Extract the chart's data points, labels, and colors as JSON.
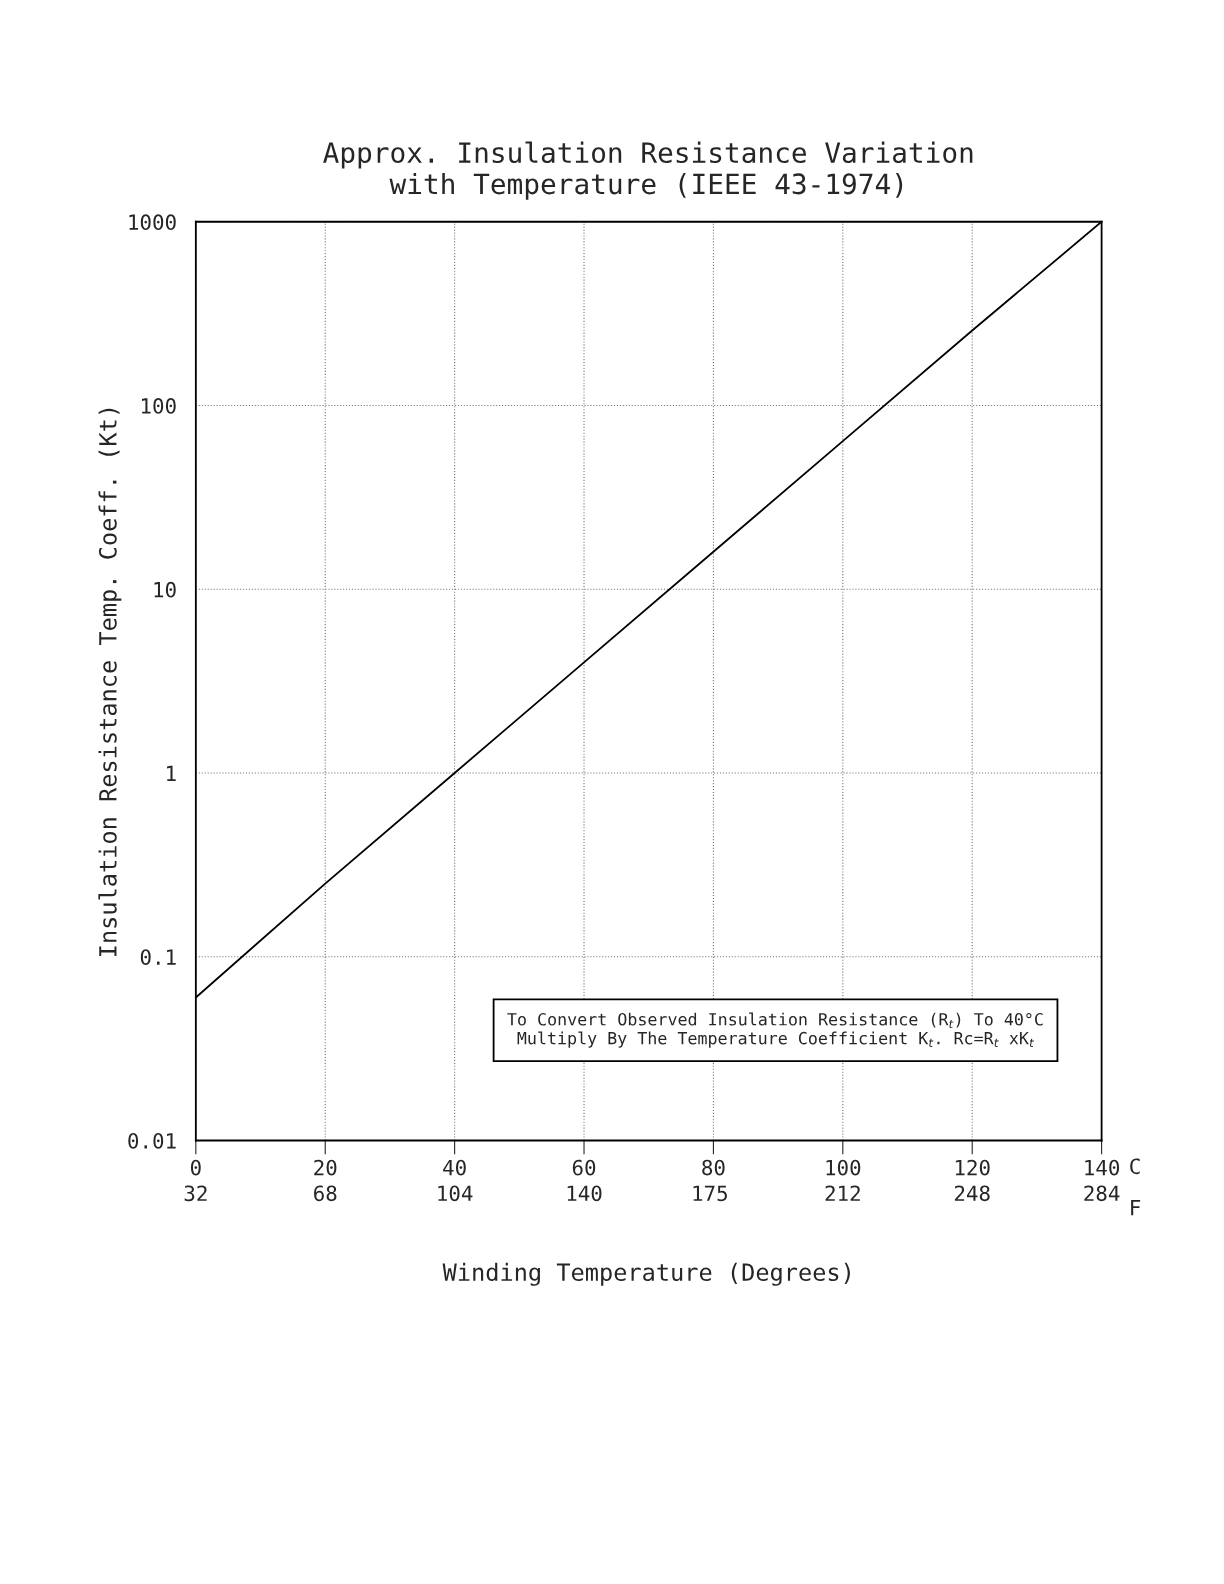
{
  "chart_data": {
    "type": "line",
    "title": "Approx. Insulation Resistance Variation\nwith Temperature (IEEE 43-1974)",
    "xlabel": "Winding Temperature (Degrees)",
    "ylabel": "Insulation Resistance Temp. Coeff. (Kt)",
    "x": [
      0,
      20,
      40,
      60,
      80,
      100,
      120,
      140
    ],
    "series": [
      {
        "color": "#000000",
        "values": [
          0.06,
          0.25,
          1,
          4,
          16,
          64,
          256,
          1000
        ]
      }
    ],
    "log": "y",
    "xlim": [
      0,
      140
    ],
    "xticks": [
      0,
      20,
      40,
      60,
      80,
      100,
      120,
      140
    ],
    "x2lim": [
      32,
      284
    ],
    "x2ticks": [
      32,
      68,
      104,
      140,
      175,
      212,
      248,
      284
    ],
    "ylim": [
      0.01,
      1000
    ],
    "yticks": [
      0.01,
      0.1,
      1,
      10,
      100,
      1000
    ],
    "grid": true,
    "marker": "none",
    "line_style": "solid",
    "annotations": [
      "To Convert Observed Insulation Resistance (R$_{t}$) To 40°C\nMultiply By The Temperature Coefficient K$_{t}$. Rc=R$_{t}$ xK$_{t}$",
      "C",
      "F"
    ]
  }
}
